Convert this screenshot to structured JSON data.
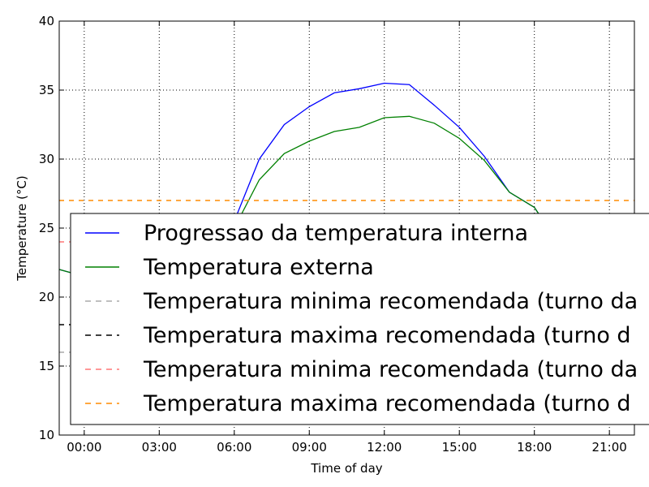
{
  "chart_data": {
    "type": "line",
    "xlabel": "Time of day",
    "ylabel": "Temperature ($^\\circ$C)",
    "ylabel_display": "Temperature (°C)",
    "xlim": [
      -1.0,
      22.0
    ],
    "ylim": [
      10,
      40
    ],
    "x_ticks": [
      0,
      3,
      6,
      9,
      12,
      15,
      18,
      21
    ],
    "x_tick_labels": [
      "00:00",
      "03:00",
      "06:00",
      "09:00",
      "12:00",
      "15:00",
      "18:00",
      "21:00"
    ],
    "y_ticks": [
      10,
      15,
      20,
      25,
      30,
      35,
      40
    ],
    "grid": true,
    "legend_position": "lower-right",
    "series": [
      {
        "name": "Progressao da temperatura interna",
        "color": "#0000ff",
        "style": "solid",
        "x": [
          -1,
          0,
          1,
          2,
          3,
          4,
          5,
          6,
          7,
          8,
          9,
          10,
          11,
          12,
          13,
          14,
          15,
          16,
          17,
          18,
          19,
          20,
          21,
          22
        ],
        "y": [
          22.0,
          21.5,
          21.0,
          20.8,
          20.5,
          20.6,
          21.5,
          25.5,
          30.0,
          32.5,
          33.8,
          34.8,
          35.1,
          35.5,
          35.4,
          33.9,
          32.3,
          30.2,
          27.6,
          26.5,
          23.8,
          23.0,
          22.5,
          22.0
        ]
      },
      {
        "name": "Temperatura externa",
        "color": "#008000",
        "style": "solid",
        "x": [
          -1,
          0,
          1,
          2,
          3,
          4,
          5,
          6,
          7,
          8,
          9,
          10,
          11,
          12,
          13,
          14,
          15,
          16,
          17,
          18,
          19,
          20,
          21,
          22
        ],
        "y": [
          22.0,
          21.5,
          21.0,
          20.8,
          20.5,
          20.6,
          21.5,
          25.0,
          28.5,
          30.4,
          31.3,
          32.0,
          32.3,
          33.0,
          33.1,
          32.6,
          31.5,
          29.9,
          27.6,
          26.5,
          23.8,
          23.0,
          22.5,
          22.0
        ]
      },
      {
        "name": "Temperatura minima recomendada (turno da",
        "color": "#aaaaaa",
        "style": "dashed",
        "x": [
          -1,
          22
        ],
        "y": [
          16,
          16
        ]
      },
      {
        "name": "Temperatura maxima recomendada (turno d",
        "color": "#000000",
        "style": "dashed",
        "x": [
          -1,
          22
        ],
        "y": [
          18,
          18
        ]
      },
      {
        "name": "Temperatura minima recomendada (turno da",
        "color": "#ff7777",
        "style": "dashed",
        "x": [
          -1,
          22
        ],
        "y": [
          24,
          24
        ]
      },
      {
        "name": "Temperatura maxima recomendada (turno d",
        "color": "#ff8c00",
        "style": "dashed",
        "x": [
          -1,
          22
        ],
        "y": [
          27,
          27
        ]
      }
    ]
  }
}
